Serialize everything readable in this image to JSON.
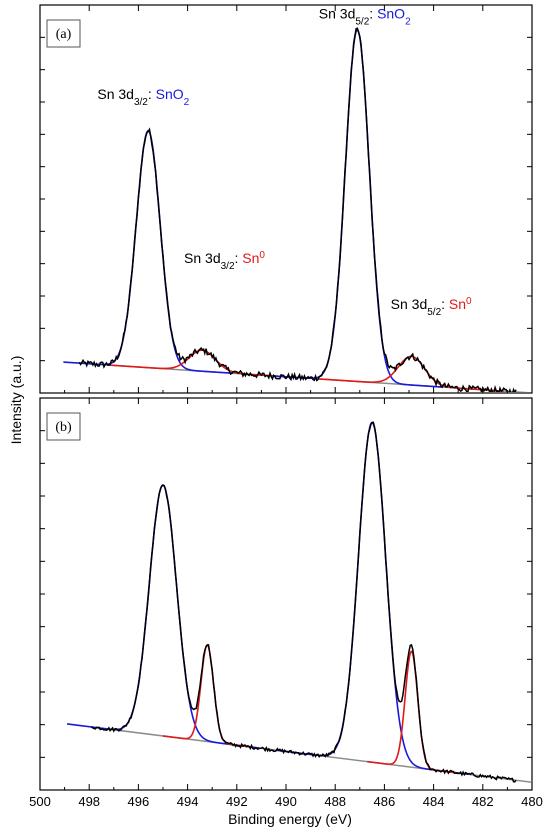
{
  "chart_data": {
    "type": "line",
    "xlabel": "Binding energy (eV)",
    "ylabel": "Intensity (a.u.)",
    "xlim": [
      500,
      480
    ],
    "x_reversed": true,
    "x_ticks": [
      500,
      498,
      496,
      494,
      492,
      490,
      488,
      486,
      484,
      482,
      480
    ],
    "y_ticks_labeled": false,
    "colors": {
      "measured": "#000000",
      "sno2": "#1a1adc",
      "sn0": "#e01818",
      "background": "#8c8c8c"
    },
    "panels": [
      {
        "tag": "(a)",
        "ylim": [
          0,
          100
        ],
        "background": {
          "at_500": 8.5,
          "at_480": 0
        },
        "peaks": [
          {
            "species": "SnO2",
            "center": 495.6,
            "height": 62,
            "fwhm": 1.15
          },
          {
            "species": "Sn0",
            "center": 493.4,
            "height": 5.5,
            "fwhm": 1.25
          },
          {
            "species": "SnO2",
            "center": 487.1,
            "height": 92,
            "fwhm": 1.15
          },
          {
            "species": "Sn0",
            "center": 484.9,
            "height": 7.5,
            "fwhm": 1.25
          }
        ],
        "annotations": [
          {
            "prefix": "Sn 3d",
            "sub": "3/2",
            "sep": ": ",
            "species": "SnO",
            "species_sub": "2",
            "kind": "sno2",
            "x": 495.8,
            "y": 77
          },
          {
            "prefix": "Sn 3d",
            "sub": "3/2",
            "sep": ": ",
            "species": "Sn",
            "species_sup": "0",
            "kind": "sn0",
            "x": 492.5,
            "y": 34
          },
          {
            "prefix": "Sn 3d",
            "sub": "5/2",
            "sep": ": ",
            "species": "SnO",
            "species_sub": "2",
            "kind": "sno2",
            "x": 486.8,
            "y": 98
          },
          {
            "prefix": "Sn 3d",
            "sub": "5/2",
            "sep": ": ",
            "species": "Sn",
            "species_sup": "0",
            "kind": "sn0",
            "x": 484.1,
            "y": 22
          }
        ]
      },
      {
        "tag": "(b)",
        "ylim": [
          0,
          100
        ],
        "background": {
          "at_500": 18,
          "at_480": 2
        },
        "peaks": [
          {
            "species": "SnO2",
            "center": 495.0,
            "height": 65,
            "fwhm": 1.3
          },
          {
            "species": "Sn0",
            "center": 493.2,
            "height": 25,
            "fwhm": 0.6
          },
          {
            "species": "SnO2",
            "center": 486.5,
            "height": 88,
            "fwhm": 1.3
          },
          {
            "species": "Sn0",
            "center": 484.9,
            "height": 30,
            "fwhm": 0.6
          }
        ],
        "annotations": []
      }
    ]
  }
}
